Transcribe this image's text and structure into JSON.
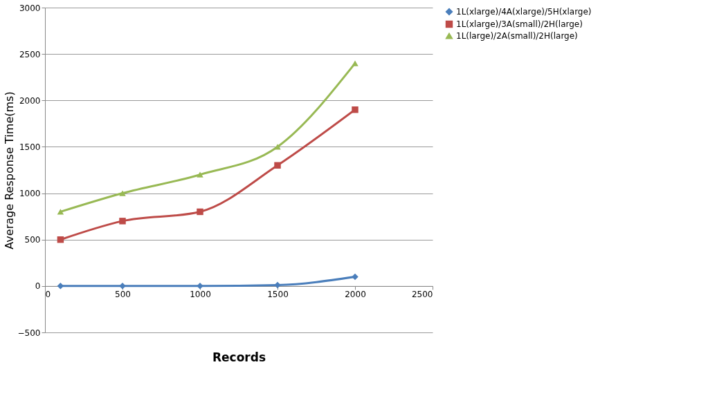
{
  "chart_data": {
    "type": "line",
    "xlabel": "Records",
    "ylabel": "Average Response Time(ms)",
    "x": [
      100,
      500,
      1000,
      1500,
      2000
    ],
    "series": [
      {
        "name": "1L(xlarge)/4A(xlarge)/5H(xlarge)",
        "color": "#4a7ebb",
        "marker": "diamond",
        "values": [
          0,
          0,
          0,
          10,
          100
        ]
      },
      {
        "name": "1L(xlarge)/3A(small)/2H(large)",
        "color": "#be4b48",
        "marker": "square",
        "values": [
          500,
          700,
          800,
          1300,
          1900
        ]
      },
      {
        "name": "1L(large)/2A(small)/2H(large)",
        "color": "#98b954",
        "marker": "triangle",
        "values": [
          800,
          1000,
          1200,
          1500,
          2400
        ]
      }
    ],
    "xlim": [
      0,
      2500
    ],
    "xticks": [
      0,
      500,
      1000,
      1500,
      2000,
      2500
    ],
    "ylim": [
      -500,
      3000
    ],
    "yticks": [
      -500,
      0,
      500,
      1000,
      1500,
      2000,
      2500,
      3000
    ],
    "grid": "y",
    "legend": "right",
    "line_style": "solid"
  }
}
